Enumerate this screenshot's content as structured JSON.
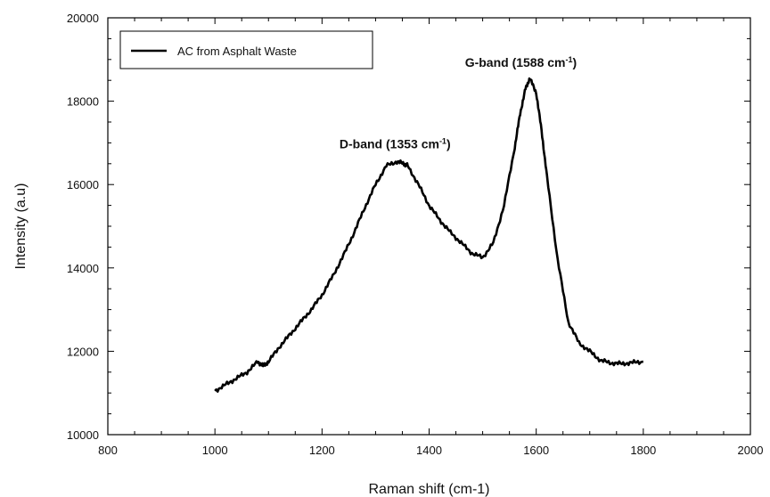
{
  "chart_data": {
    "type": "line",
    "title": "",
    "xlabel": "Raman shift (cm-1)",
    "ylabel": "Intensity (a.u)",
    "xlim": [
      800,
      2000
    ],
    "ylim": [
      10000,
      20000
    ],
    "x_ticks": [
      800,
      1000,
      1200,
      1400,
      1600,
      1800,
      2000
    ],
    "x_tick_labels": [
      "800",
      "1000",
      "1200",
      "1400",
      "1600",
      "1800",
      "2000"
    ],
    "y_ticks": [
      10000,
      12000,
      14000,
      16000,
      18000,
      20000
    ],
    "y_tick_labels": [
      "10000",
      "12000",
      "14000",
      "16000",
      "18000",
      "20000"
    ],
    "grid": false,
    "legend_position": "top-left",
    "series": [
      {
        "name": "AC from Asphalt Waste",
        "color": "#000000",
        "x": [
          1000,
          1020,
          1040,
          1060,
          1080,
          1090,
          1100,
          1120,
          1140,
          1160,
          1180,
          1200,
          1220,
          1240,
          1260,
          1280,
          1300,
          1320,
          1340,
          1353,
          1360,
          1380,
          1400,
          1420,
          1440,
          1460,
          1480,
          1500,
          1520,
          1540,
          1560,
          1570,
          1580,
          1588,
          1600,
          1610,
          1620,
          1640,
          1660,
          1680,
          1700,
          1720,
          1740,
          1760,
          1780,
          1800
        ],
        "y": [
          11050,
          11200,
          11350,
          11500,
          11750,
          11650,
          11750,
          12100,
          12400,
          12700,
          13000,
          13350,
          13800,
          14300,
          14850,
          15450,
          16000,
          16450,
          16550,
          16500,
          16450,
          16000,
          15500,
          15150,
          14850,
          14600,
          14350,
          14250,
          14600,
          15500,
          16900,
          17700,
          18300,
          18550,
          18200,
          17300,
          16200,
          14200,
          12700,
          12200,
          12000,
          11780,
          11720,
          11700,
          11730,
          11750
        ]
      }
    ],
    "annotations": [
      {
        "text": "D-band (1353 cm",
        "sup": "-1",
        "close": ")"
      },
      {
        "text": "G-band (1588 cm",
        "sup": "-1",
        "close": ")"
      }
    ]
  }
}
